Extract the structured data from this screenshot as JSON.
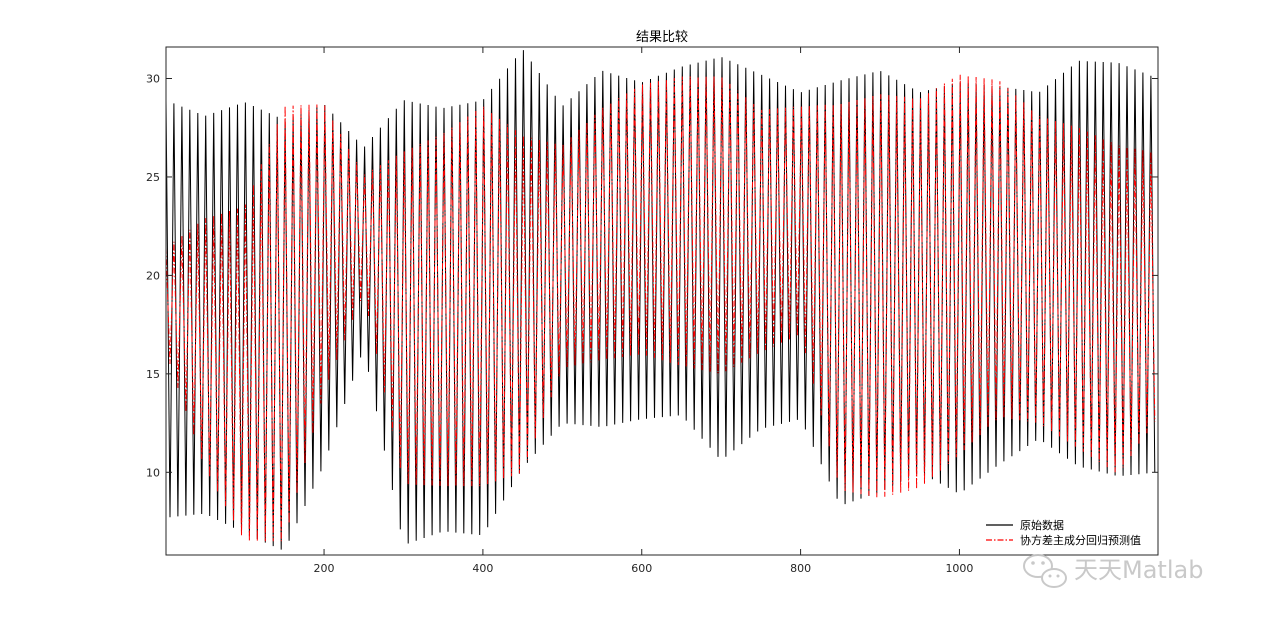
{
  "chart_data": {
    "type": "line",
    "title": "结果比较",
    "xlabel": "",
    "ylabel": "",
    "xlim": [
      1,
      1250
    ],
    "ylim": [
      5.8,
      31.6
    ],
    "x_ticks": [
      200,
      400,
      600,
      800,
      1000
    ],
    "y_ticks": [
      10,
      15,
      20,
      25,
      30
    ],
    "grid": false,
    "legend_position": "bottom-right",
    "sample_interval": 5,
    "series": [
      {
        "name": "原始数据",
        "color": "#000000",
        "line_style": "solid",
        "envelope_x": [
          1,
          50,
          100,
          150,
          200,
          250,
          300,
          350,
          400,
          450,
          500,
          550,
          600,
          650,
          700,
          750,
          800,
          850,
          900,
          950,
          1000,
          1050,
          1100,
          1150,
          1200,
          1250
        ],
        "envelope_high": [
          28.9,
          28.1,
          28.8,
          27.9,
          28.7,
          26.5,
          28.9,
          28.5,
          28.9,
          31.5,
          28.6,
          30.4,
          29.8,
          30.6,
          31.1,
          30.2,
          29.3,
          29.9,
          30.4,
          29.3,
          29.8,
          29.6,
          29.3,
          30.9,
          30.8,
          30.0
        ],
        "envelope_low": [
          7.7,
          7.9,
          6.9,
          6.0,
          10.4,
          16.3,
          6.3,
          7.0,
          6.8,
          10.2,
          12.5,
          12.3,
          12.7,
          12.9,
          10.6,
          12.2,
          12.7,
          8.3,
          9.0,
          10.0,
          8.9,
          10.4,
          11.7,
          10.3,
          9.8,
          10.0
        ]
      },
      {
        "name": "协方差主成分回归预测值",
        "color": "#ff0000",
        "line_style": "dash-dot",
        "envelope_x": [
          1,
          50,
          100,
          150,
          200,
          250,
          300,
          350,
          400,
          450,
          500,
          550,
          600,
          650,
          700,
          750,
          800,
          850,
          900,
          950,
          1000,
          1050,
          1100,
          1150,
          1200,
          1250
        ],
        "envelope_high": [
          21.4,
          22.9,
          23.5,
          28.6,
          28.7,
          25.1,
          26.3,
          27.2,
          28.6,
          27.1,
          26.6,
          28.5,
          29.7,
          30.1,
          30.1,
          28.4,
          28.6,
          28.7,
          29.2,
          29.0,
          30.2,
          29.9,
          28.1,
          27.5,
          26.6,
          26.2
        ],
        "envelope_low": [
          16.1,
          10.2,
          6.5,
          6.5,
          14.1,
          19.1,
          9.4,
          9.3,
          9.3,
          10.0,
          15.3,
          15.7,
          16.0,
          15.4,
          15.0,
          16.1,
          17.0,
          9.1,
          8.7,
          9.2,
          10.9,
          12.8,
          12.5,
          11.2,
          9.9,
          12.8
        ]
      }
    ]
  },
  "watermark": {
    "text": "天天Matlab",
    "icon": "wechat-icon",
    "color": "#c4c4c4"
  }
}
